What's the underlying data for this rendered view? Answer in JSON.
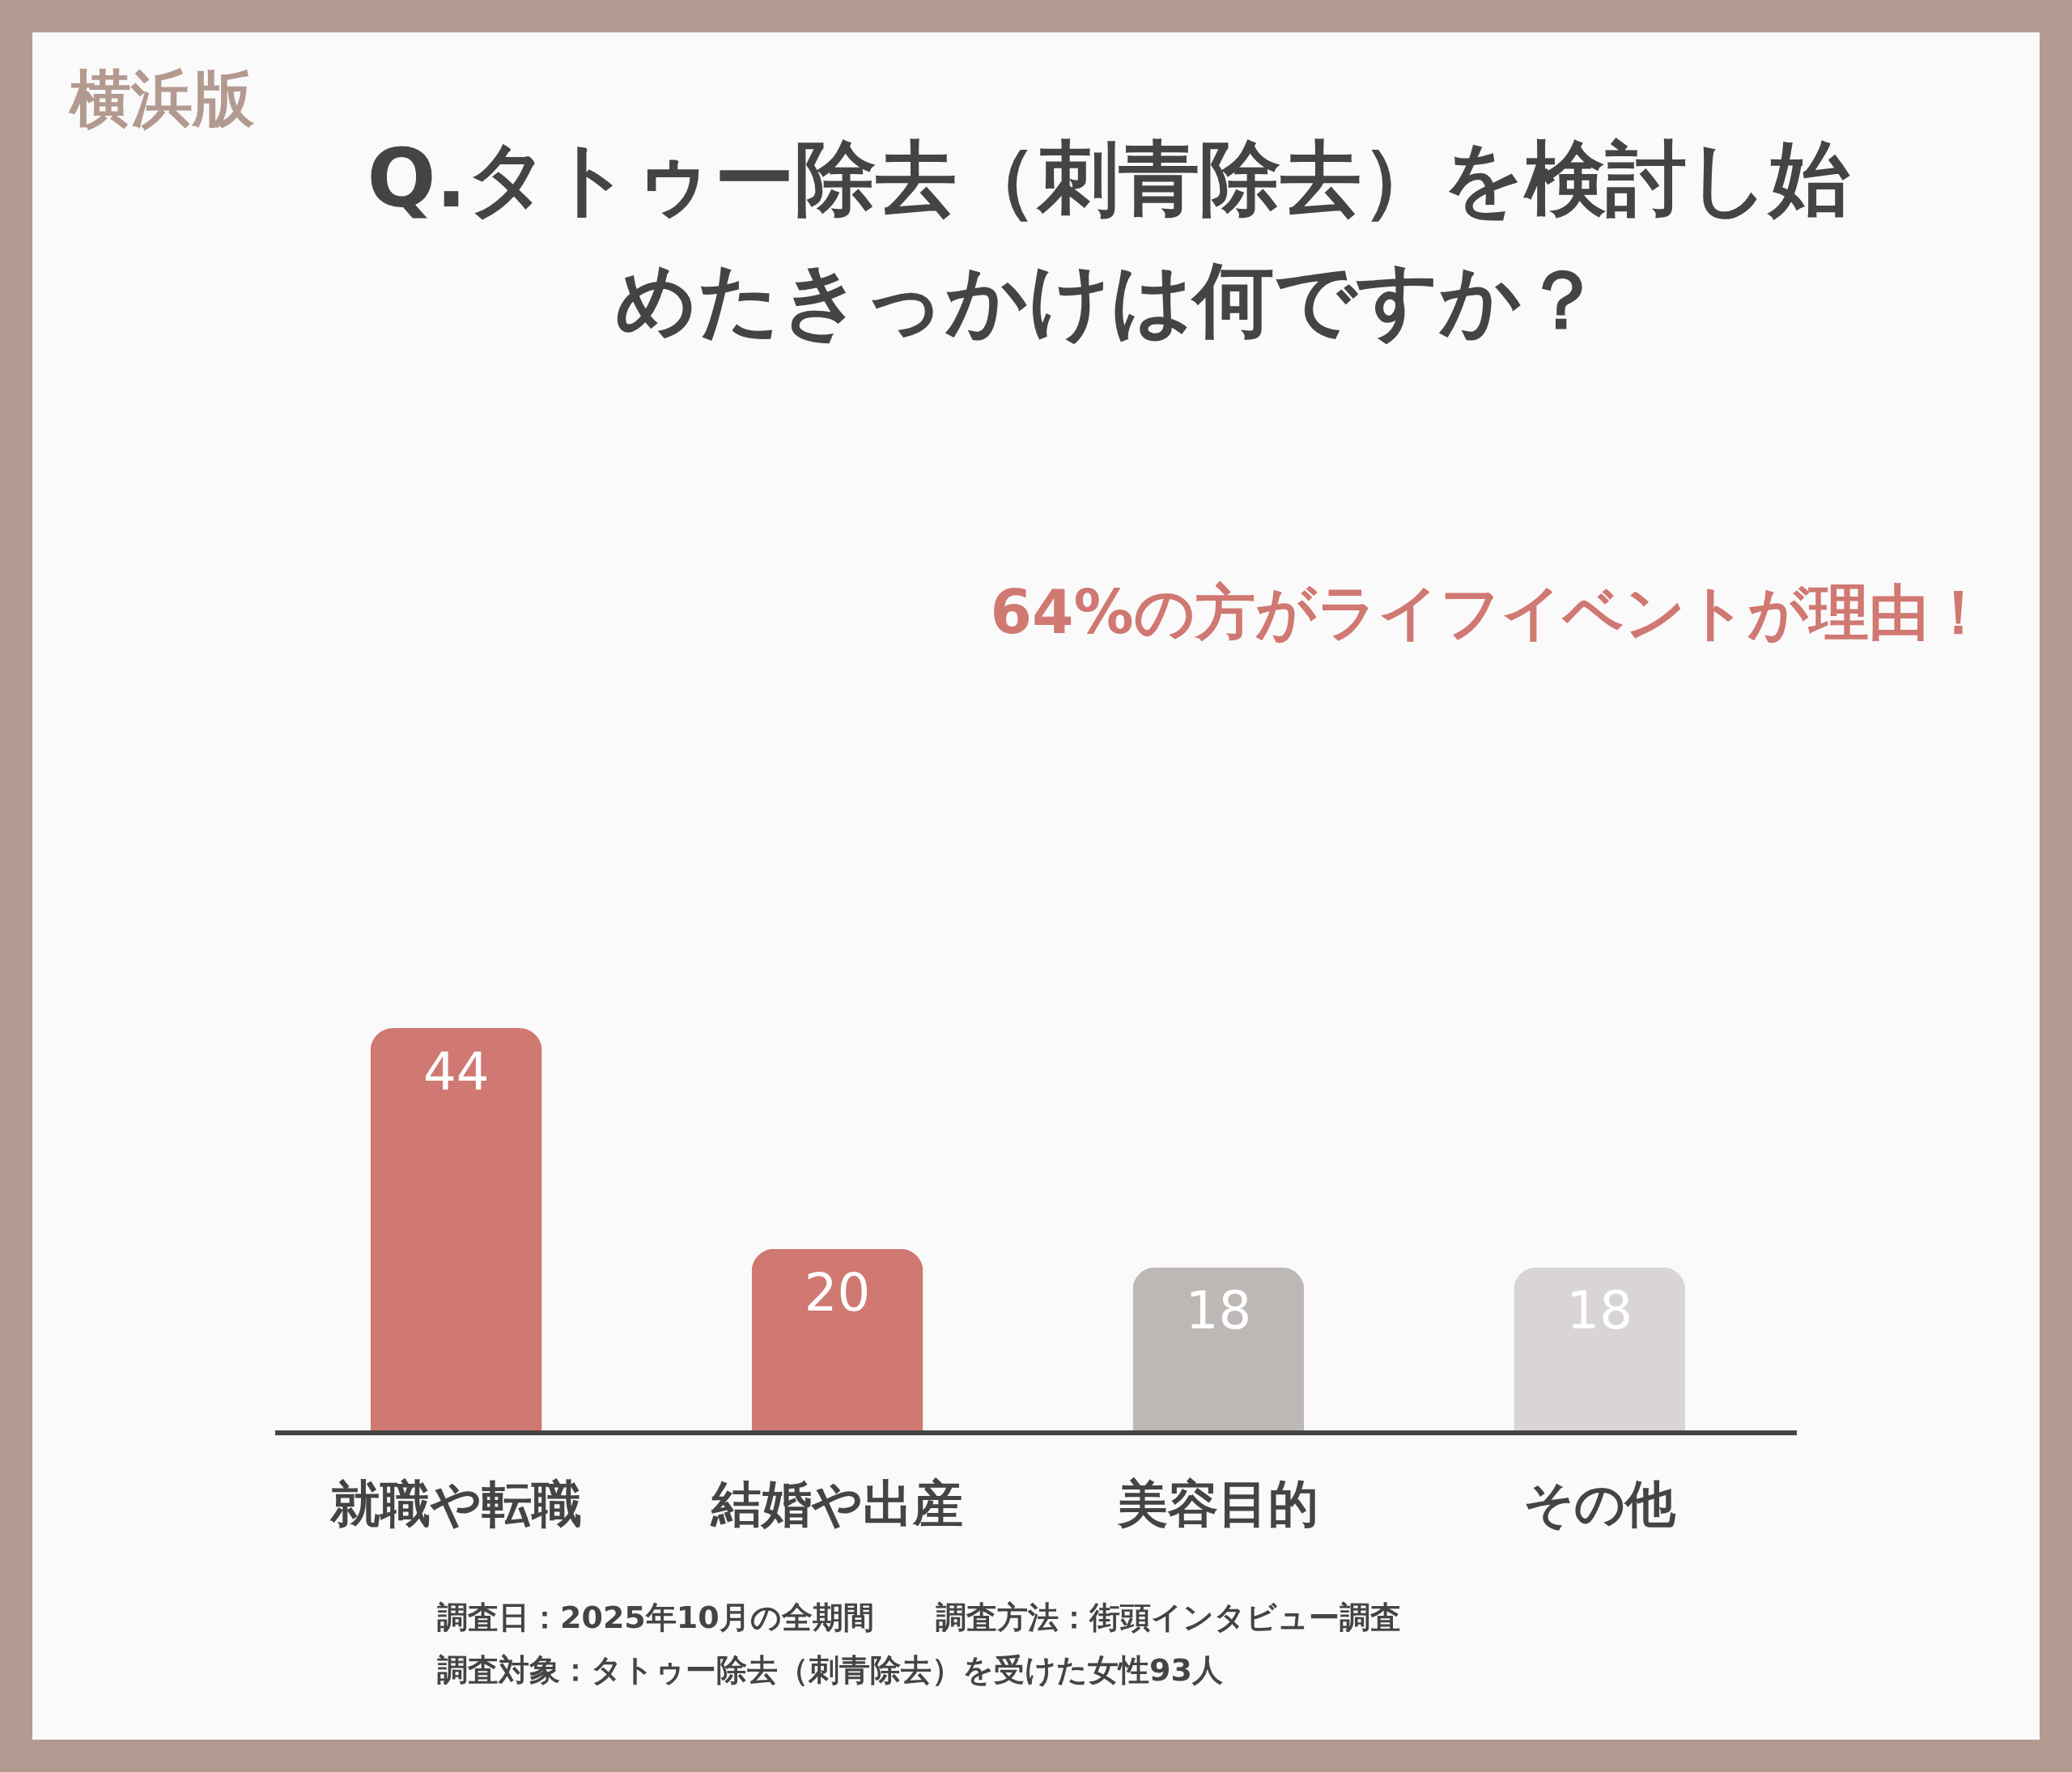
{
  "chart_data": {
    "type": "bar",
    "title": "Q.タトゥー除去（刺青除去）を検討し始めたきっかけは何ですか？",
    "categories": [
      "就職や転職",
      "結婚や出産",
      "美容目的",
      "その他"
    ],
    "values": [
      44,
      20,
      18,
      18
    ],
    "colors": [
      "#d07872",
      "#d07872",
      "#bdb8b6",
      "#d8d5d4"
    ],
    "data_labels": true,
    "annotations": [
      "横浜版",
      "64%の方がライフイベントが理由！",
      "調査日：2025年10月の全期間　　調査方法：街頭インタビュー調査",
      "調査対象：タトゥー除去（刺青除去）を受けた女性93人"
    ]
  }
}
